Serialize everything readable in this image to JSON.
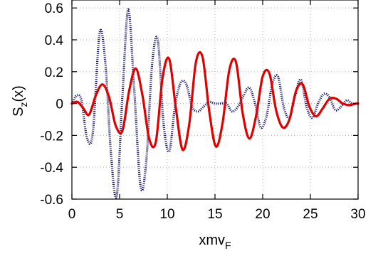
{
  "chart_data": {
    "type": "line",
    "title": "",
    "xlabel": {
      "main": "xmv",
      "sub": "F"
    },
    "ylabel": {
      "main": "S",
      "sub": "z",
      "suffix": "(x)"
    },
    "xlim": [
      0,
      30
    ],
    "ylim": [
      -0.6,
      0.65
    ],
    "xticks": [
      0,
      5,
      10,
      15,
      20,
      25,
      30
    ],
    "yticks": [
      -0.6,
      -0.4,
      -0.2,
      0,
      0.2,
      0.4,
      0.6
    ],
    "xtick_labels": [
      "0",
      "5",
      "10",
      "15",
      "20",
      "25",
      "30"
    ],
    "ytick_labels": [
      "-0.6",
      "-0.4",
      "-0.2",
      "0",
      "0.2",
      "0.4",
      "0.6"
    ],
    "grid": true,
    "legend": null,
    "series": [
      {
        "color": "#e00000",
        "style": "solid",
        "x": [
          0,
          0.6,
          1.2,
          1.8,
          2.5,
          3.2,
          3.9,
          4.6,
          5.3,
          6.0,
          6.7,
          7.4,
          8.1,
          8.8,
          9.5,
          10.2,
          10.9,
          11.6,
          12.3,
          13.0,
          13.7,
          14.4,
          15.1,
          15.8,
          16.5,
          17.2,
          17.9,
          18.6,
          19.3,
          20.0,
          20.7,
          21.4,
          22.1,
          22.8,
          23.5,
          24.2,
          24.9,
          25.6,
          26.3,
          27.0,
          27.7,
          28.4,
          29.1,
          29.8,
          30
        ],
        "y": [
          0,
          0.01,
          -0.03,
          -0.07,
          0.05,
          0.12,
          0.04,
          -0.14,
          -0.17,
          0.08,
          0.22,
          0.05,
          -0.22,
          -0.24,
          0.16,
          0.28,
          -0.03,
          -0.29,
          -0.13,
          0.26,
          0.29,
          -0.05,
          -0.27,
          -0.12,
          0.21,
          0.26,
          -0.06,
          -0.22,
          -0.08,
          0.17,
          0.19,
          -0.04,
          -0.15,
          -0.1,
          0.08,
          0.12,
          -0.02,
          -0.08,
          -0.03,
          0.03,
          0.03,
          0.0,
          -0.01,
          0.0,
          0.0
        ]
      },
      {
        "color": "#1a1a6e",
        "style": "dotted",
        "x": [
          0,
          0.5,
          1.0,
          1.6,
          2.2,
          2.9,
          3.5,
          4.1,
          4.7,
          5.3,
          5.9,
          6.5,
          7.2,
          7.8,
          8.4,
          9.0,
          9.6,
          10.2,
          10.8,
          11.4,
          12.0,
          12.6,
          13.2,
          13.8,
          14.4,
          15.0,
          15.6,
          16.2,
          16.8,
          17.4,
          18.0,
          18.6,
          19.2,
          19.8,
          20.4,
          21.0,
          21.6,
          22.2,
          22.8,
          23.4,
          24.0,
          24.6,
          25.2,
          25.8,
          26.4,
          27.0,
          27.6,
          28.2,
          28.8,
          29.4,
          30
        ],
        "y": [
          0,
          0.05,
          0.02,
          -0.22,
          -0.18,
          0.44,
          0.26,
          -0.32,
          -0.58,
          0.05,
          0.59,
          0.12,
          -0.52,
          -0.36,
          0.24,
          0.4,
          -0.12,
          -0.3,
          -0.02,
          0.13,
          0.12,
          -0.02,
          -0.05,
          -0.02,
          0.01,
          0.0,
          0.0,
          0.0,
          -0.05,
          -0.02,
          0.05,
          0.1,
          0.0,
          -0.15,
          -0.08,
          0.12,
          0.17,
          -0.02,
          -0.09,
          0.05,
          0.15,
          -0.02,
          -0.09,
          0.0,
          0.06,
          0.04,
          -0.04,
          -0.02,
          0.02,
          0.0,
          0.0
        ]
      }
    ]
  }
}
